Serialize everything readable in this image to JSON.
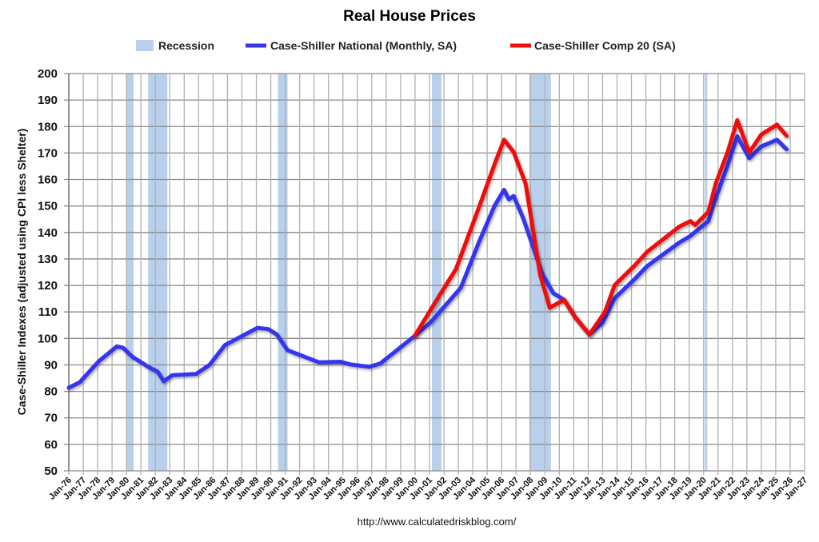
{
  "chart_data": {
    "type": "line",
    "title": "Real House Prices",
    "xlabel": "",
    "ylabel": "Case-Shiller Indexes (adjusted using CPI less Shelter)",
    "ylim": [
      50,
      200
    ],
    "yticks": [
      50,
      60,
      70,
      80,
      90,
      100,
      110,
      120,
      130,
      140,
      150,
      160,
      170,
      180,
      190,
      200
    ],
    "xlim": [
      "1976-01",
      "2027-01"
    ],
    "xtick_labels": [
      "Jan-76",
      "Jan-77",
      "Jan-78",
      "Jan-79",
      "Jan-80",
      "Jan-81",
      "Jan-82",
      "Jan-83",
      "Jan-84",
      "Jan-85",
      "Jan-86",
      "Jan-87",
      "Jan-88",
      "Jan-89",
      "Jan-90",
      "Jan-91",
      "Jan-92",
      "Jan-93",
      "Jan-94",
      "Jan-95",
      "Jan-96",
      "Jan-97",
      "Jan-98",
      "Jan-99",
      "Jan-00",
      "Jan-01",
      "Jan-02",
      "Jan-03",
      "Jan-04",
      "Jan-05",
      "Jan-06",
      "Jan-07",
      "Jan-08",
      "Jan-09",
      "Jan-10",
      "Jan-11",
      "Jan-12",
      "Jan-13",
      "Jan-14",
      "Jan-15",
      "Jan-16",
      "Jan-17",
      "Jan-18",
      "Jan-19",
      "Jan-20",
      "Jan-21",
      "Jan-22",
      "Jan-23",
      "Jan-24",
      "Jan-25",
      "Jan-26",
      "Jan-27"
    ],
    "grid": true,
    "legend_position": "top",
    "legend": {
      "recession_label": "Recession",
      "national_label": "Case-Shiller National (Monthly, SA)",
      "comp20_label": "Case-Shiller Comp 20  (SA)"
    },
    "recessions": [
      [
        "1980-01",
        "1980-07"
      ],
      [
        "1981-07",
        "1982-11"
      ],
      [
        "1990-07",
        "1991-03"
      ],
      [
        "2001-03",
        "2001-11"
      ],
      [
        "2007-12",
        "2009-06"
      ],
      [
        "2020-02",
        "2020-04"
      ]
    ],
    "series": [
      {
        "name": "Case-Shiller National (Monthly, SA)",
        "color": "#3535ec",
        "points": [
          [
            "1976-01",
            81.4
          ],
          [
            "1976-10",
            83.4
          ],
          [
            "1978-02",
            91.4
          ],
          [
            "1979-05",
            97
          ],
          [
            "1979-10",
            96.5
          ],
          [
            "1980-06",
            93
          ],
          [
            "1981-07",
            89.3
          ],
          [
            "1982-03",
            87.4
          ],
          [
            "1982-08",
            83.8
          ],
          [
            "1983-03",
            86.1
          ],
          [
            "1984-11",
            86.6
          ],
          [
            "1985-10",
            90
          ],
          [
            "1986-11",
            97.5
          ],
          [
            "1989-02",
            104
          ],
          [
            "1989-11",
            103.5
          ],
          [
            "1990-06",
            101.5
          ],
          [
            "1991-03",
            95.5
          ],
          [
            "1991-09",
            94.5
          ],
          [
            "1993-05",
            91
          ],
          [
            "1994-11",
            91.2
          ],
          [
            "1995-07",
            90.2
          ],
          [
            "1996-11",
            89.3
          ],
          [
            "1997-08",
            90.5
          ],
          [
            "1999-11",
            100.3
          ],
          [
            "2001-02",
            106.1
          ],
          [
            "2003-03",
            119.1
          ],
          [
            "2004-06",
            136.2
          ],
          [
            "2005-07",
            150
          ],
          [
            "2006-03",
            156.1
          ],
          [
            "2006-07",
            152.5
          ],
          [
            "2006-11",
            153.8
          ],
          [
            "2007-07",
            145.3
          ],
          [
            "2008-11",
            124.2
          ],
          [
            "2009-08",
            117.1
          ],
          [
            "2010-05",
            114.6
          ],
          [
            "2011-02",
            108.1
          ],
          [
            "2012-02",
            101.5
          ],
          [
            "2013-01",
            106
          ],
          [
            "2013-11",
            115.2
          ],
          [
            "2015-03",
            122.1
          ],
          [
            "2016-02",
            127.3
          ],
          [
            "2018-05",
            136.3
          ],
          [
            "2019-02",
            138.7
          ],
          [
            "2020-05",
            144.3
          ],
          [
            "2020-09",
            150.3
          ],
          [
            "2021-09",
            165.4
          ],
          [
            "2022-05",
            176.3
          ],
          [
            "2023-03",
            168
          ],
          [
            "2024-01",
            172.5
          ],
          [
            "2025-02",
            175
          ],
          [
            "2025-10",
            171.4
          ]
        ]
      },
      {
        "name": "Case-Shiller Comp 20  (SA)",
        "color": "#ee1111",
        "points": [
          [
            "2000-01",
            101.1
          ],
          [
            "2001-03",
            111.6
          ],
          [
            "2002-11",
            126.2
          ],
          [
            "2004-06",
            149.3
          ],
          [
            "2005-08",
            166.9
          ],
          [
            "2006-03",
            175
          ],
          [
            "2006-11",
            170.4
          ],
          [
            "2007-09",
            158.4
          ],
          [
            "2008-09",
            124.2
          ],
          [
            "2009-05",
            111.6
          ],
          [
            "2010-05",
            114.6
          ],
          [
            "2011-02",
            108.1
          ],
          [
            "2012-02",
            101.5
          ],
          [
            "2013-03",
            110.1
          ],
          [
            "2013-11",
            120.1
          ],
          [
            "2015-03",
            127.2
          ],
          [
            "2016-02",
            132.7
          ],
          [
            "2018-05",
            142.3
          ],
          [
            "2019-02",
            144.3
          ],
          [
            "2019-06",
            142.8
          ],
          [
            "2020-05",
            147.8
          ],
          [
            "2020-11",
            158.4
          ],
          [
            "2021-09",
            170.4
          ],
          [
            "2022-05",
            182.4
          ],
          [
            "2023-03",
            170.2
          ],
          [
            "2024-01",
            177
          ],
          [
            "2025-02",
            180.7
          ],
          [
            "2025-10",
            176.5
          ]
        ]
      }
    ],
    "recession_color": "#b9d0ec",
    "source": "http://www.calculatedriskblog.com/"
  }
}
